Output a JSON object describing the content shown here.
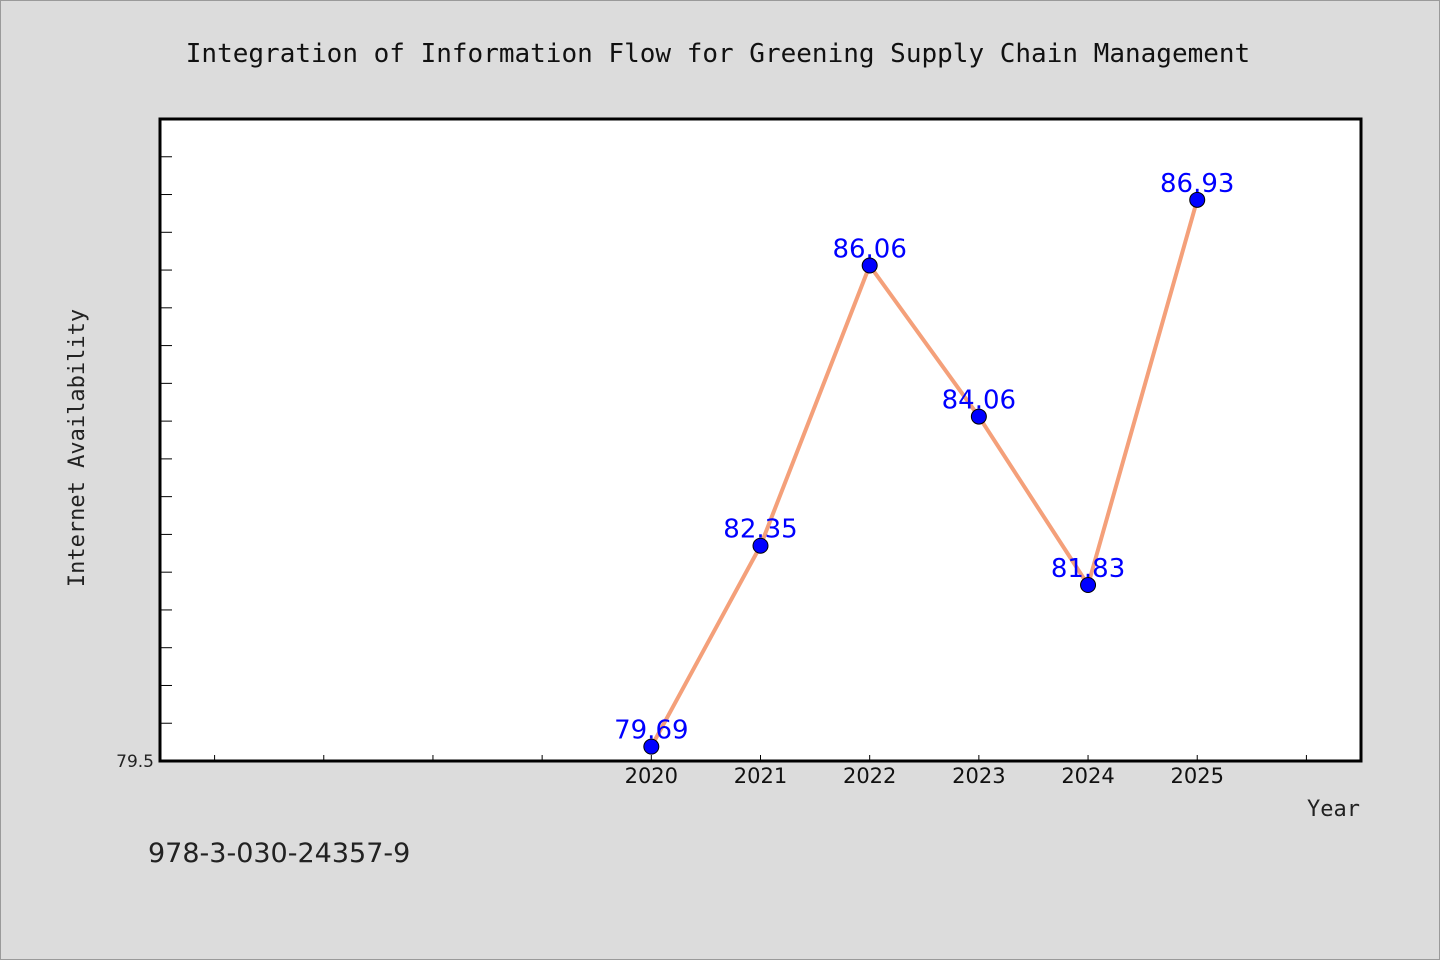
{
  "colors": {
    "background": "#dcdcdc",
    "plot_background": "#ffffff",
    "line": "#f4a07a",
    "marker": "#0000ff",
    "data_label": "#0000ff"
  },
  "footnote": "978-3-030-24357-9",
  "chart_data": {
    "type": "line",
    "title": "Integration of Information Flow for Greening Supply Chain Management",
    "xlabel": "Year",
    "ylabel": "Internet Availability",
    "xlim": [
      2015.5,
      2026.5
    ],
    "ylim": [
      79.5,
      88.0
    ],
    "x_tick_labels": [
      "2020",
      "2021",
      "2022",
      "2023",
      "2024",
      "2025"
    ],
    "y_tick_labels": [
      "79.5"
    ],
    "grid": false,
    "legend": "none",
    "series": [
      {
        "x": [
          2020,
          2021,
          2022,
          2023,
          2024,
          2025
        ],
        "values": [
          79.69,
          82.35,
          86.06,
          84.06,
          81.83,
          86.93
        ],
        "labels": [
          "79.69",
          "82.35",
          "86.06",
          "84.06",
          "81.83",
          "86.93"
        ]
      }
    ]
  }
}
